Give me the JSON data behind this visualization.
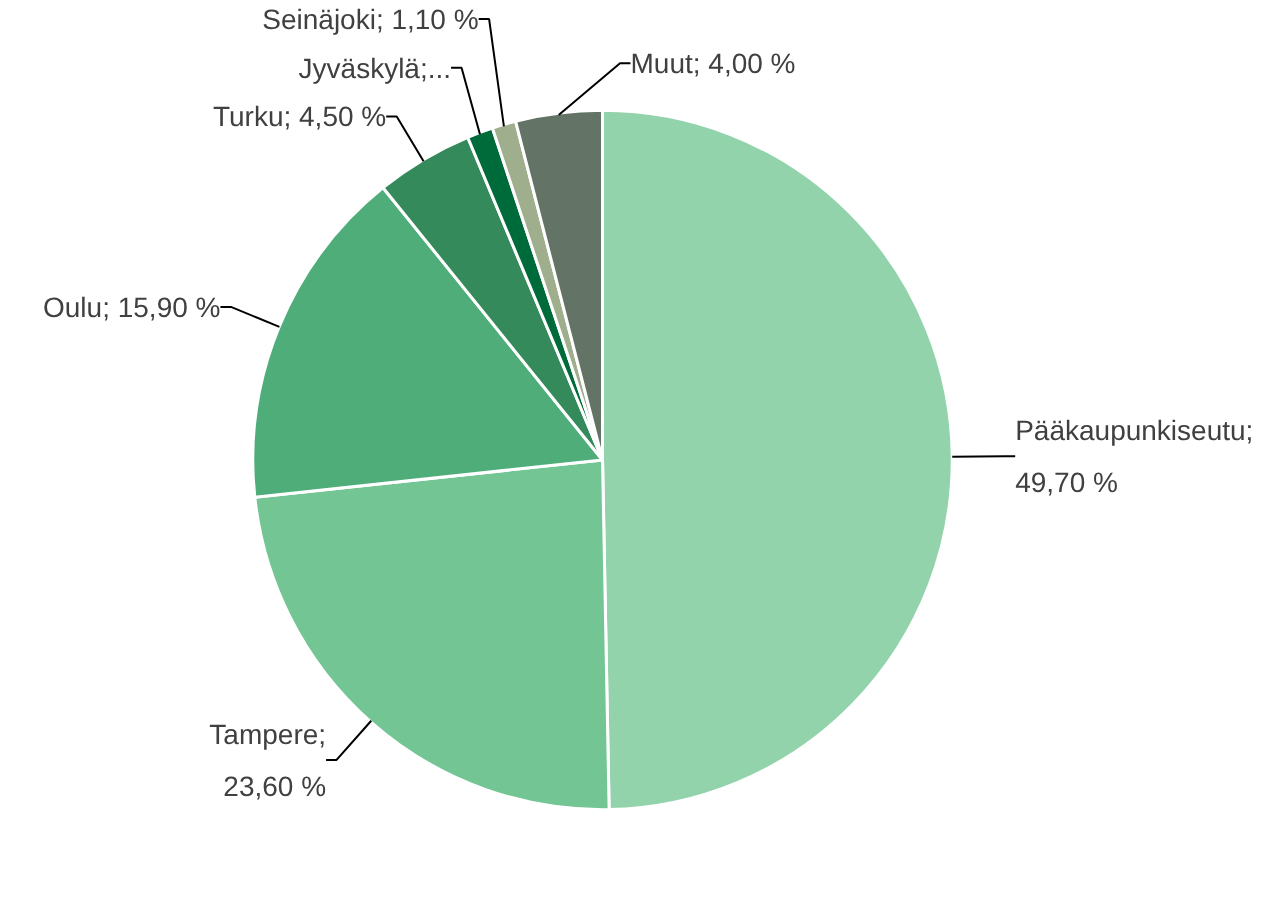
{
  "chart_data": {
    "type": "pie",
    "categories": [
      "Pääkaupunkiseutu",
      "Tampere",
      "Oulu",
      "Turku",
      "Jyväskylä",
      "Seinäjoki",
      "Muut"
    ],
    "values": [
      49.7,
      23.6,
      15.9,
      4.5,
      1.2,
      1.1,
      4.0
    ],
    "colors": [
      "#93d3ac",
      "#74c594",
      "#4fad7a",
      "#358a5b",
      "#006b3a",
      "#9fae8c",
      "#637466"
    ],
    "value_labels": [
      "; 49,70 %",
      "; 23,60 %",
      "; 15,90 %",
      "; 4,50 %",
      ";...",
      "; 1,10 %",
      "; 4,00 %"
    ]
  }
}
